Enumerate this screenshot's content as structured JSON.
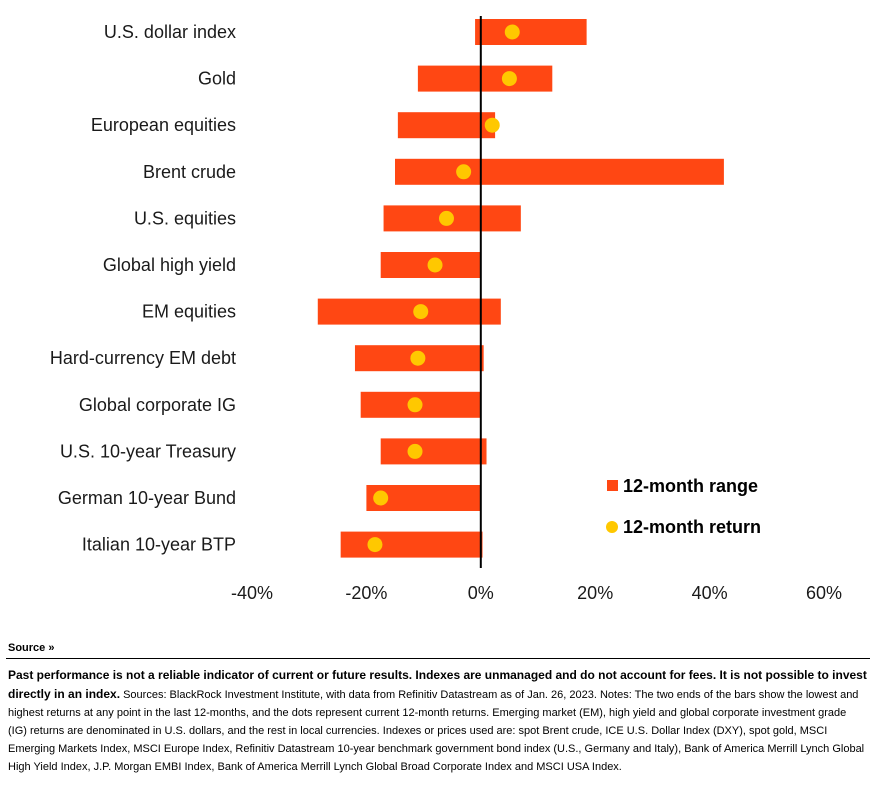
{
  "chart_data": {
    "type": "bar",
    "orientation": "horizontal",
    "categories": [
      "U.S. dollar index",
      "Gold",
      "European equities",
      "Brent crude",
      "U.S. equities",
      "Global high yield",
      "EM equities",
      "Hard-currency EM debt",
      "Global corporate IG",
      "U.S. 10-year Treasury",
      "German 10-year Bund",
      "Italian 10-year BTP"
    ],
    "series": [
      {
        "name": "12-month range",
        "low": [
          -1,
          -11,
          -14.5,
          -15,
          -17,
          -17.5,
          -28.5,
          -22,
          -21,
          -17.5,
          -20,
          -24.5
        ],
        "high": [
          18.5,
          12.5,
          2.5,
          42.5,
          7,
          0,
          3.5,
          0.5,
          0,
          1,
          0,
          0.3
        ]
      },
      {
        "name": "12-month return",
        "values": [
          5.5,
          5,
          2,
          -3,
          -6,
          -8,
          -10.5,
          -11,
          -11.5,
          -11.5,
          -17.5,
          -18.5
        ]
      }
    ],
    "xlim": [
      -44,
      62
    ],
    "x_ticks": [
      "-40%",
      "-20%",
      "0%",
      "20%",
      "40%",
      "60%"
    ],
    "x_tick_values": [
      -40,
      -20,
      0,
      20,
      40,
      60
    ],
    "legend_position": "right",
    "colors": {
      "range": "#ff4713",
      "return": "#ffc800",
      "zero_line": "#000000"
    }
  },
  "legend": {
    "range_label": "12-month range",
    "return_label": "12-month return"
  },
  "source": {
    "toggle_label": "Source",
    "disclaimer": "Past performance is not a reliable indicator of current or future results. Indexes are unmanaged and do not account for fees. It is not possible to invest directly in an index.",
    "notes": "Sources: BlackRock Investment Institute, with data from Refinitiv Datastream as of Jan. 26, 2023. Notes: The two ends of the bars show the lowest and highest returns at any point in the last 12-months, and the dots represent current 12-month returns. Emerging market (EM), high yield and global corporate investment grade (IG) returns are denominated in U.S. dollars, and the rest in local currencies. Indexes or prices used are: spot Brent crude, ICE U.S. Dollar Index (DXY), spot gold, MSCI Emerging Markets Index, MSCI Europe Index, Refinitiv Datastream 10-year benchmark government bond index (U.S., Germany and Italy), Bank of America Merrill Lynch Global High Yield Index, J.P. Morgan EMBI Index, Bank of America Merrill Lynch Global Broad Corporate Index and MSCI USA Index."
  }
}
